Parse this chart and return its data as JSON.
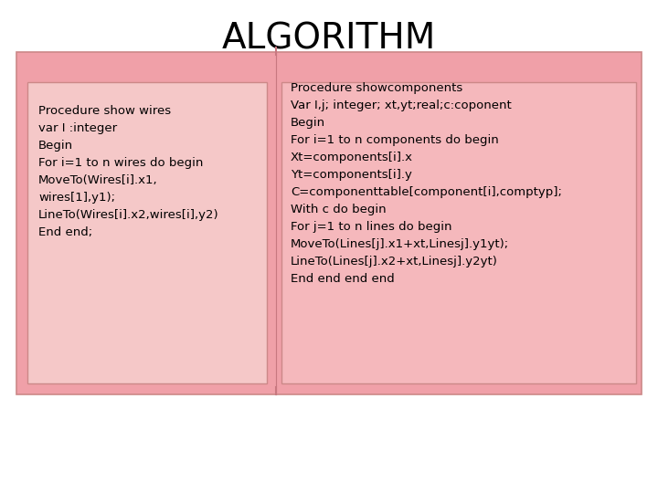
{
  "title": "ALGORITHM",
  "title_fontsize": 28,
  "bg_color": "#ffffff",
  "outer_box_color": "#f0a0a8",
  "inner_box_left_color": "#f5c8c8",
  "inner_box_right_color": "#f5b8bc",
  "left_text": "Procedure show wires\nvar I :integer\nBegin\nFor i=1 to n wires do begin\nMoveTo(Wires[i].x1,\nwires[1],y1);\nLineTo(Wires[i].x2,wires[i],y2)\nEnd end;",
  "right_text": "Procedure showcomponents\nVar I,j; integer; xt,yt;real;c:coponent\nBegin\nFor i=1 to n components do begin\nXt=components[i].x\nYt=components[i].y\nC=componenttable[component[i],comptyp];\nWith c do begin\nFor j=1 to n lines do begin\nMoveTo(Lines[j].x1+xt,Linesj].y1yt);\nLineTo(Lines[j].x2+xt,Linesj].y2yt)\nEnd end end end",
  "code_fontsize": 9.5,
  "divider_color": "#c87880",
  "outer_edge_color": "#cc8888",
  "inner_edge_color": "#cc8888"
}
